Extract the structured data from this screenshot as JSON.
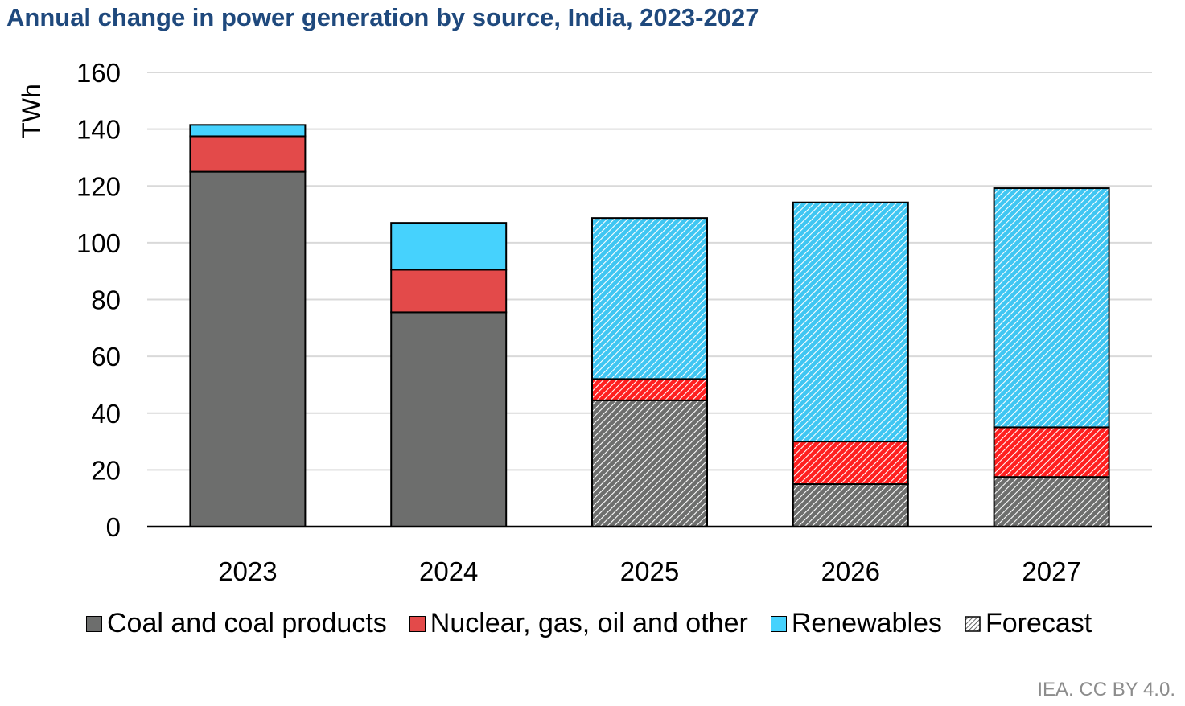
{
  "chart_data": {
    "type": "bar",
    "stacked": true,
    "title": "Annual change in power generation by source, India, 2023-2027",
    "ylabel": "TWh",
    "xlabel": "",
    "ylim": [
      0,
      160
    ],
    "yticks": [
      0,
      20,
      40,
      60,
      80,
      100,
      120,
      140,
      160
    ],
    "grid": true,
    "legend_position": "bottom",
    "categories": [
      "2023",
      "2024",
      "2025",
      "2026",
      "2027"
    ],
    "forecast": [
      false,
      false,
      true,
      true,
      true
    ],
    "series": [
      {
        "name": "Coal and coal products",
        "color": "#6d6e6d",
        "values": [
          125,
          75.5,
          44.5,
          15,
          17.5
        ]
      },
      {
        "name": "Nuclear, gas, oil and other",
        "color": "#e34a4a",
        "values": [
          12.5,
          15,
          7.5,
          15,
          17.5
        ]
      },
      {
        "name": "Renewables",
        "color": "#46d2fd",
        "values": [
          4,
          16.5,
          56.7,
          84.2,
          84.2
        ]
      }
    ],
    "forecast_label": "Forecast"
  },
  "source_note": "IEA. CC BY 4.0."
}
